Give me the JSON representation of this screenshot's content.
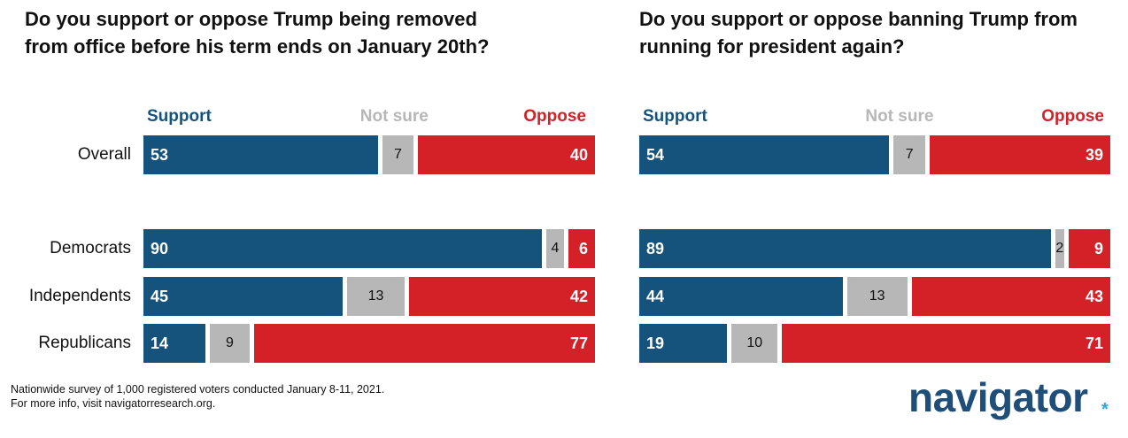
{
  "colors": {
    "support": "#15537d",
    "not_sure": "#b7b7b7",
    "oppose": "#d42128",
    "text_dark": "#111111",
    "text_light": "#ffffff",
    "logo": "#1f4e79",
    "logo_accent": "#2aa8d8"
  },
  "chart_data": [
    {
      "type": "bar",
      "title": "Do you support or oppose Trump being removed from office before his term ends on January 20th?",
      "legend": [
        "Support",
        "Not sure",
        "Oppose"
      ],
      "categories": [
        "Overall",
        "Democrats",
        "Independents",
        "Republicans"
      ],
      "series": [
        {
          "name": "Support",
          "values": [
            53,
            90,
            45,
            14
          ]
        },
        {
          "name": "Not sure",
          "values": [
            7,
            4,
            13,
            9
          ]
        },
        {
          "name": "Oppose",
          "values": [
            40,
            6,
            42,
            77
          ]
        }
      ]
    },
    {
      "type": "bar",
      "title": "Do you support or oppose banning Trump from running for president again?",
      "legend": [
        "Support",
        "Not sure",
        "Oppose"
      ],
      "categories": [
        "Overall",
        "Democrats",
        "Independents",
        "Republicans"
      ],
      "series": [
        {
          "name": "Support",
          "values": [
            54,
            89,
            44,
            19
          ]
        },
        {
          "name": "Not sure",
          "values": [
            7,
            2,
            13,
            10
          ]
        },
        {
          "name": "Oppose",
          "values": [
            39,
            9,
            43,
            71
          ]
        }
      ]
    }
  ],
  "footnote": {
    "line1": "Nationwide survey of 1,000 registered voters conducted January 8-11, 2021.",
    "line2": "For more info, visit navigatorresearch.org."
  },
  "logo": {
    "text": "navigator",
    "mark": "*"
  }
}
